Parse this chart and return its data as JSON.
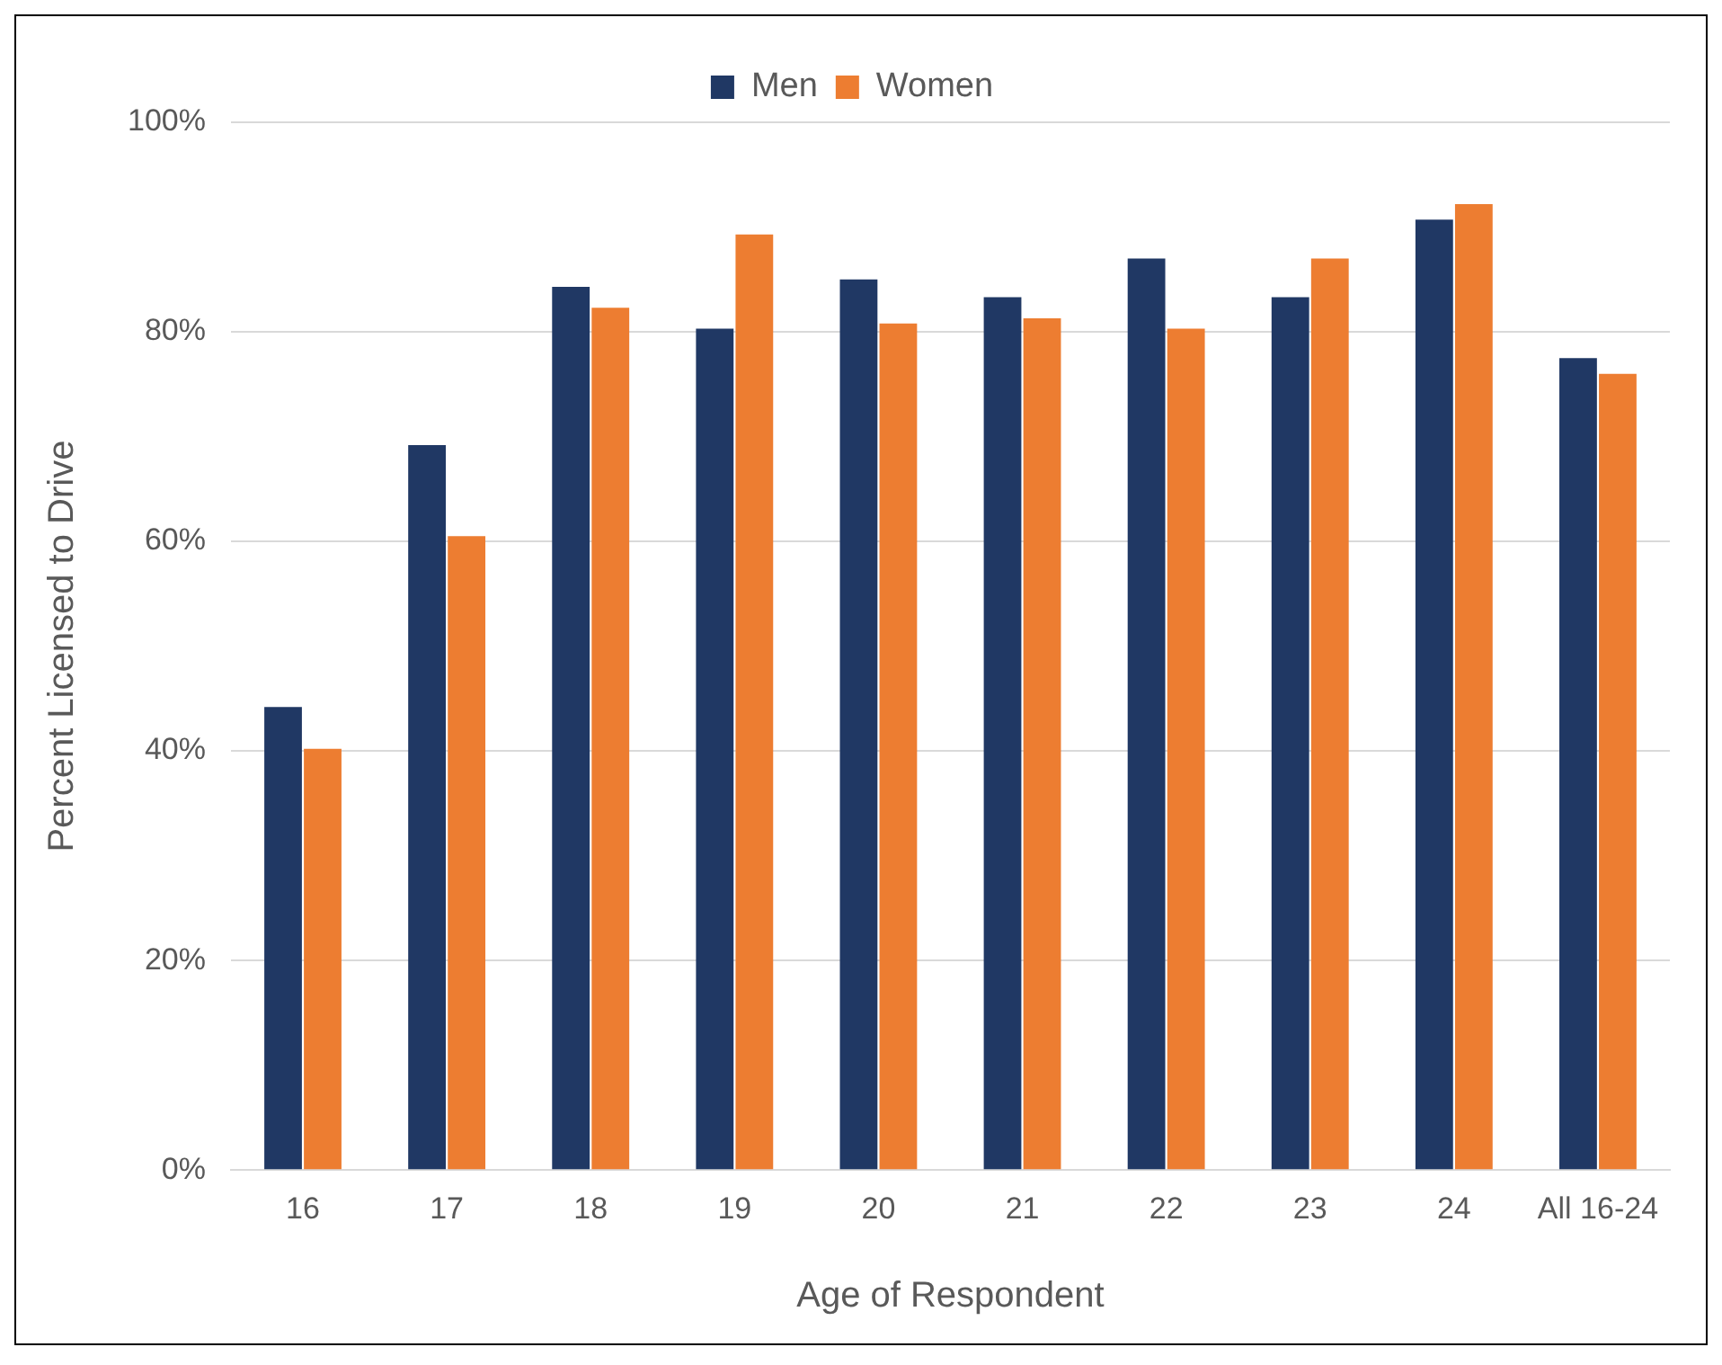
{
  "chart_data": {
    "type": "bar",
    "xlabel": "Age of Respondent",
    "ylabel": "Percent Licensed to Drive",
    "categories": [
      "16",
      "17",
      "18",
      "19",
      "20",
      "21",
      "22",
      "23",
      "24",
      "All 16-24"
    ],
    "series": [
      {
        "name": "Men",
        "color": "#203864",
        "values": [
          44.2,
          69.2,
          84.3,
          80.3,
          85.0,
          83.3,
          87.0,
          83.3,
          90.7,
          77.5
        ]
      },
      {
        "name": "Women",
        "color": "#ed7d31",
        "values": [
          40.2,
          60.5,
          82.3,
          89.3,
          80.8,
          81.3,
          80.3,
          87.0,
          92.2,
          76.0
        ]
      }
    ],
    "ylim": [
      0,
      100
    ],
    "yticks": [
      {
        "value": 0,
        "label": "0%"
      },
      {
        "value": 20,
        "label": "20%"
      },
      {
        "value": 40,
        "label": "40%"
      },
      {
        "value": 60,
        "label": "60%"
      },
      {
        "value": 80,
        "label": "80%"
      },
      {
        "value": 100,
        "label": "100%"
      }
    ],
    "grid": "y",
    "legend": "top"
  }
}
